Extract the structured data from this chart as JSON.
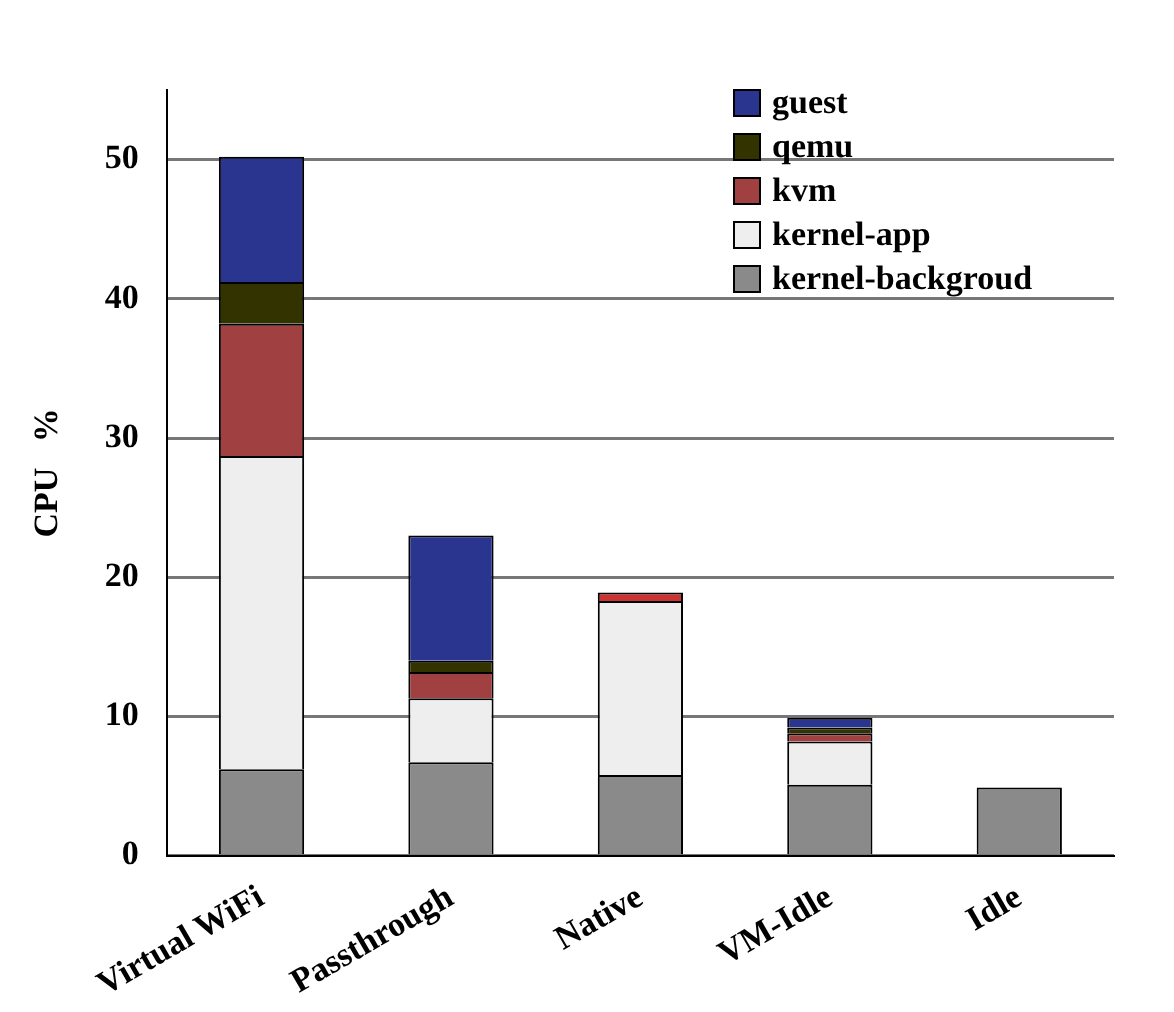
{
  "chart_data": {
    "type": "bar",
    "stacked": true,
    "ylabel": "CPU   %",
    "categories": [
      "Virtual WiFi",
      "Passthrough",
      "Native",
      "VM-Idle",
      "Idle"
    ],
    "series": [
      {
        "name": "kernel-backgroud",
        "color": "#8a8a8a",
        "values": [
          6.2,
          6.7,
          5.8,
          5.1,
          4.9
        ]
      },
      {
        "name": "kernel-app",
        "color": "#eeeeee",
        "values": [
          22.5,
          4.6,
          12.5,
          3.1,
          0
        ]
      },
      {
        "name": "kvm",
        "color": "#a04040",
        "values": [
          9.5,
          1.9,
          0,
          0.6,
          0
        ]
      },
      {
        "name": "qemu",
        "color": "#333300",
        "values": [
          3,
          0.8,
          0,
          0.4,
          0
        ]
      },
      {
        "color": "#cc3333",
        "values": [
          0,
          0,
          0.6,
          0,
          0
        ]
      },
      {
        "name": "guest",
        "color": "#2a3590",
        "values": [
          9,
          9,
          0,
          0.7,
          0
        ]
      }
    ],
    "ylim": [
      0,
      55
    ],
    "yticks": [
      0,
      10,
      20,
      30,
      40,
      50
    ],
    "grid": "y",
    "legend": "top right"
  }
}
